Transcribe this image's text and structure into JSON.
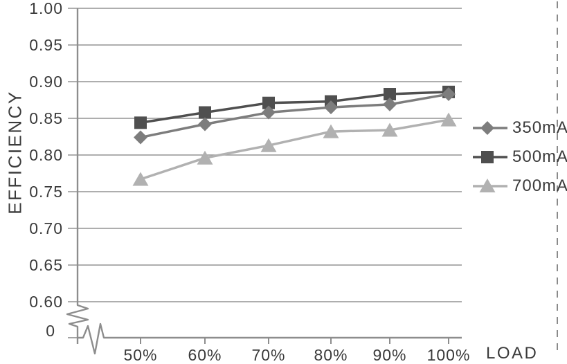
{
  "chart_data": {
    "type": "line",
    "title": "",
    "xlabel": "LOAD",
    "ylabel": "EFFICIENCY",
    "categories": [
      "50%",
      "60%",
      "70%",
      "80%",
      "90%",
      "100%"
    ],
    "series": [
      {
        "name": "350mA",
        "marker": "diamond",
        "color": "#7d7d7d",
        "values": [
          0.824,
          0.842,
          0.858,
          0.865,
          0.869,
          0.883
        ]
      },
      {
        "name": "500mA",
        "marker": "square",
        "color": "#4f4f4f",
        "values": [
          0.844,
          0.858,
          0.871,
          0.873,
          0.883,
          0.886
        ]
      },
      {
        "name": "700mA",
        "marker": "triangle",
        "color": "#b1b1b1",
        "values": [
          0.767,
          0.796,
          0.813,
          0.832,
          0.834,
          0.848
        ]
      }
    ],
    "y_tick_labels": [
      "1.00",
      "0.95",
      "0.90",
      "0.85",
      "0.80",
      "0.75",
      "0.70",
      "0.65",
      "0.60"
    ],
    "y_ticks": [
      1.0,
      0.95,
      0.9,
      0.85,
      0.8,
      0.75,
      0.7,
      0.65,
      0.6
    ],
    "origin_label": "0",
    "ylim": [
      0.6,
      1.0
    ],
    "axis_break": true,
    "grid": true,
    "legend_position": "right"
  },
  "colors": {
    "axis": "#8d8d8d",
    "grid": "#949494",
    "text": "#3b3b3b",
    "dashed_border": "#8a8a8a",
    "background": "#ffffff"
  }
}
